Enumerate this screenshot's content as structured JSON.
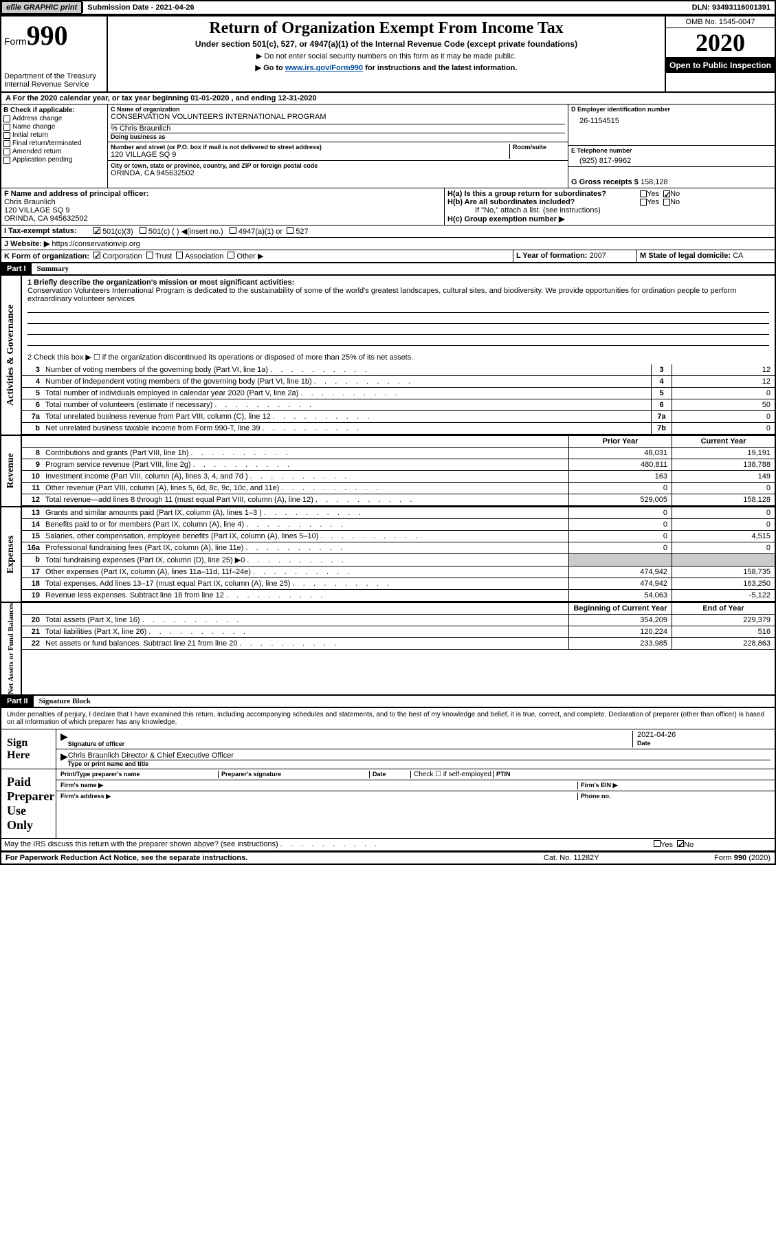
{
  "topbar": {
    "efile": "efile GRAPHIC print",
    "submission_label": "Submission Date - ",
    "submission_date": "2021-04-26",
    "dln_label": "DLN: ",
    "dln": "93493116001391"
  },
  "header": {
    "form_label": "Form",
    "form_num": "990",
    "dept1": "Department of the Treasury",
    "dept2": "Internal Revenue Service",
    "title": "Return of Organization Exempt From Income Tax",
    "sub": "Under section 501(c), 527, or 4947(a)(1) of the Internal Revenue Code (except private foundations)",
    "note1": "▶ Do not enter social security numbers on this form as it may be made public.",
    "note2_pre": "▶ Go to ",
    "note2_link": "www.irs.gov/Form990",
    "note2_post": " for instructions and the latest information.",
    "omb": "OMB No. 1545-0047",
    "year": "2020",
    "inspection": "Open to Public Inspection"
  },
  "row_a": "A For the 2020 calendar year, or tax year beginning 01-01-2020    , and ending 12-31-2020",
  "section_b": {
    "label": "B Check if applicable:",
    "opts": [
      "Address change",
      "Name change",
      "Initial return",
      "Final return/terminated",
      "Amended return",
      "Application pending"
    ]
  },
  "section_c": {
    "name_label": "C Name of organization",
    "name": "CONSERVATION VOLUNTEERS INTERNATIONAL PROGRAM",
    "care_of": "% Chris Braunlich",
    "dba_label": "Doing business as",
    "street_label": "Number and street (or P.O. box if mail is not delivered to street address)",
    "room_label": "Room/suite",
    "street": "120 VILLAGE SQ 9",
    "city_label": "City or town, state or province, country, and ZIP or foreign postal code",
    "city": "ORINDA, CA  945632502"
  },
  "section_d": {
    "ein_label": "D Employer identification number",
    "ein": "26-1154515",
    "phone_label": "E Telephone number",
    "phone": "(925) 817-9962",
    "gross_label": "G Gross receipts $ ",
    "gross": "158,128"
  },
  "section_f": {
    "label": "F Name and address of principal officer:",
    "name": "Chris Braunlich",
    "addr1": "120 VILLAGE SQ 9",
    "addr2": "ORINDA, CA  945632502"
  },
  "section_h": {
    "ha_label": "H(a)  Is this a group return for subordinates?",
    "hb_label": "H(b)  Are all subordinates included?",
    "hb_note": "If \"No,\" attach a list. (see instructions)",
    "hc_label": "H(c)  Group exemption number ▶"
  },
  "row_i": {
    "label": "I  Tax-exempt status:",
    "opt1": "501(c)(3)",
    "opt2": "501(c) (  ) ◀(insert no.)",
    "opt3": "4947(a)(1) or",
    "opt4": "527"
  },
  "row_j": {
    "label": "J  Website: ▶  ",
    "url": "https://conservationvip.org"
  },
  "row_k": {
    "label": "K Form of organization:",
    "opts": [
      "Corporation",
      "Trust",
      "Association",
      "Other ▶"
    ],
    "l_label": "L Year of formation: ",
    "l_val": "2007",
    "m_label": "M State of legal domicile: ",
    "m_val": "CA"
  },
  "part1": {
    "num": "Part I",
    "title": "Summary",
    "line1_label": "1  Briefly describe the organization's mission or most significant activities:",
    "mission": "Conservation Volunteers International Program is dedicated to the sustainability of some of the world's greatest landscapes, cultural sites, and biodiversity. We provide opportunities for ordination people to perform extraordinary volunteer services",
    "line2": "2  Check this box ▶ ☐  if the organization discontinued its operations or disposed of more than 25% of its net assets.",
    "sections": {
      "activities": "Activities & Governance",
      "revenue": "Revenue",
      "expenses": "Expenses",
      "netassets": "Net Assets or Fund Balances"
    },
    "prior_year": "Prior Year",
    "current_year": "Current Year",
    "begin_year": "Beginning of Current Year",
    "end_year": "End of Year",
    "lines_gov": [
      {
        "n": "3",
        "d": "Number of voting members of the governing body (Part VI, line 1a)",
        "box": "3",
        "v": "12"
      },
      {
        "n": "4",
        "d": "Number of independent voting members of the governing body (Part VI, line 1b)",
        "box": "4",
        "v": "12"
      },
      {
        "n": "5",
        "d": "Total number of individuals employed in calendar year 2020 (Part V, line 2a)",
        "box": "5",
        "v": "0"
      },
      {
        "n": "6",
        "d": "Total number of volunteers (estimate if necessary)",
        "box": "6",
        "v": "50"
      },
      {
        "n": "7a",
        "d": "Total unrelated business revenue from Part VIII, column (C), line 12",
        "box": "7a",
        "v": "0"
      },
      {
        "n": "b",
        "d": "Net unrelated business taxable income from Form 990-T, line 39",
        "box": "7b",
        "v": "0"
      }
    ],
    "lines_rev": [
      {
        "n": "8",
        "d": "Contributions and grants (Part VIII, line 1h)",
        "py": "48,031",
        "cy": "19,191"
      },
      {
        "n": "9",
        "d": "Program service revenue (Part VIII, line 2g)",
        "py": "480,811",
        "cy": "138,788"
      },
      {
        "n": "10",
        "d": "Investment income (Part VIII, column (A), lines 3, 4, and 7d )",
        "py": "163",
        "cy": "149"
      },
      {
        "n": "11",
        "d": "Other revenue (Part VIII, column (A), lines 5, 6d, 8c, 9c, 10c, and 11e)",
        "py": "0",
        "cy": "0"
      },
      {
        "n": "12",
        "d": "Total revenue—add lines 8 through 11 (must equal Part VIII, column (A), line 12)",
        "py": "529,005",
        "cy": "158,128"
      }
    ],
    "lines_exp": [
      {
        "n": "13",
        "d": "Grants and similar amounts paid (Part IX, column (A), lines 1–3 )",
        "py": "0",
        "cy": "0"
      },
      {
        "n": "14",
        "d": "Benefits paid to or for members (Part IX, column (A), line 4)",
        "py": "0",
        "cy": "0"
      },
      {
        "n": "15",
        "d": "Salaries, other compensation, employee benefits (Part IX, column (A), lines 5–10)",
        "py": "0",
        "cy": "4,515"
      },
      {
        "n": "16a",
        "d": "Professional fundraising fees (Part IX, column (A), line 11e)",
        "py": "0",
        "cy": "0"
      },
      {
        "n": "b",
        "d": "Total fundraising expenses (Part IX, column (D), line 25) ▶0",
        "py": "",
        "cy": "",
        "grey": true
      },
      {
        "n": "17",
        "d": "Other expenses (Part IX, column (A), lines 11a–11d, 11f–24e)",
        "py": "474,942",
        "cy": "158,735"
      },
      {
        "n": "18",
        "d": "Total expenses. Add lines 13–17 (must equal Part IX, column (A), line 25)",
        "py": "474,942",
        "cy": "163,250"
      },
      {
        "n": "19",
        "d": "Revenue less expenses. Subtract line 18 from line 12",
        "py": "54,063",
        "cy": "-5,122"
      }
    ],
    "lines_net": [
      {
        "n": "20",
        "d": "Total assets (Part X, line 16)",
        "py": "354,209",
        "cy": "229,379"
      },
      {
        "n": "21",
        "d": "Total liabilities (Part X, line 26)",
        "py": "120,224",
        "cy": "516"
      },
      {
        "n": "22",
        "d": "Net assets or fund balances. Subtract line 21 from line 20",
        "py": "233,985",
        "cy": "228,863"
      }
    ]
  },
  "part2": {
    "num": "Part II",
    "title": "Signature Block",
    "penalties": "Under penalties of perjury, I declare that I have examined this return, including accompanying schedules and statements, and to the best of my knowledge and belief, it is true, correct, and complete. Declaration of preparer (other than officer) is based on all information of which preparer has any knowledge.",
    "sign_here": "Sign Here",
    "sig_officer": "Signature of officer",
    "sig_date": "Date",
    "sig_date_val": "2021-04-26",
    "officer_name": "Chris Braunlich  Director & Chief Executive Officer",
    "type_name": "Type or print name and title",
    "paid_prep": "Paid Preparer Use Only",
    "prep_name": "Print/Type preparer's name",
    "prep_sig": "Preparer's signature",
    "prep_date": "Date",
    "check_self": "Check ☐ if self-employed",
    "ptin": "PTIN",
    "firm_name": "Firm's name    ▶",
    "firm_ein": "Firm's EIN ▶",
    "firm_addr": "Firm's address ▶",
    "phone": "Phone no.",
    "discuss": "May the IRS discuss this return with the preparer shown above? (see instructions)"
  },
  "footer": {
    "paperwork": "For Paperwork Reduction Act Notice, see the separate instructions.",
    "cat": "Cat. No. 11282Y",
    "form": "Form 990 (2020)"
  },
  "yes": "Yes",
  "no": "No"
}
